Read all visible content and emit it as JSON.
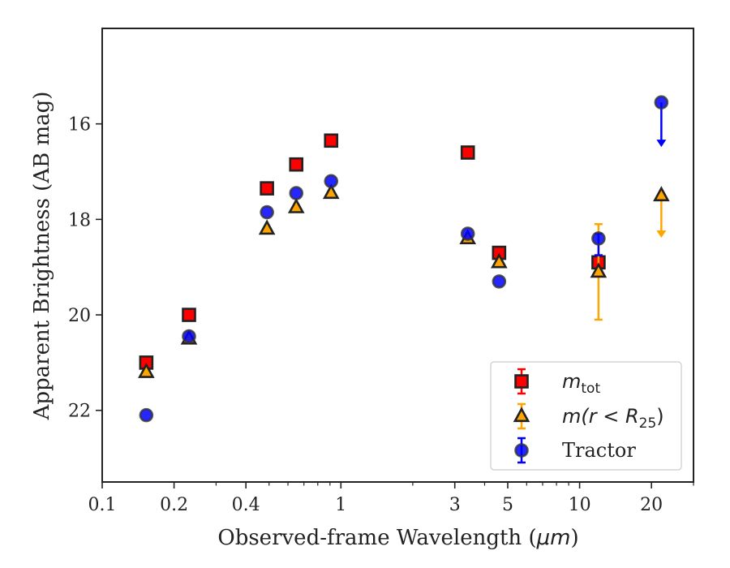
{
  "chart_data": {
    "type": "scatter",
    "xlabel_prefix": "Observed-frame Wavelength (",
    "xlabel_unit": "μm",
    "xlabel_suffix": ")",
    "ylabel": "Apparent Brightness (AB mag)",
    "xscale": "log",
    "xlim": [
      0.1,
      30
    ],
    "ylim": [
      23.5,
      14
    ],
    "y_inverted": true,
    "grid": false,
    "legend_position": "lower-right",
    "x_tick_labels": [
      "0.1",
      "0.2",
      "0.4",
      "1",
      "3",
      "5",
      "10",
      "20"
    ],
    "x_ticks": [
      0.1,
      0.2,
      0.4,
      1,
      3,
      5,
      10,
      20
    ],
    "y_ticks": [
      16,
      18,
      20,
      22
    ],
    "y_tick_labels": [
      "16",
      "18",
      "20",
      "22"
    ],
    "series": [
      {
        "name": "m_tot",
        "legend_main": "m",
        "legend_sub": "tot",
        "marker": "square",
        "color": "#ff0000",
        "edge": "#222222",
        "points": [
          {
            "x": 0.153,
            "y": 21.0
          },
          {
            "x": 0.231,
            "y": 20.0
          },
          {
            "x": 0.49,
            "y": 17.35
          },
          {
            "x": 0.65,
            "y": 16.85
          },
          {
            "x": 0.91,
            "y": 16.35
          },
          {
            "x": 3.4,
            "y": 16.6
          },
          {
            "x": 4.6,
            "y": 18.7
          },
          {
            "x": 12.0,
            "y": 18.9
          }
        ]
      },
      {
        "name": "m(r < R25)",
        "legend_main": "m(r < R",
        "legend_sub": "25",
        "legend_tail": ")",
        "marker": "triangle",
        "color": "#ffa500",
        "edge": "#222222",
        "points": [
          {
            "x": 0.153,
            "y": 21.2
          },
          {
            "x": 0.231,
            "y": 20.5
          },
          {
            "x": 0.49,
            "y": 18.2
          },
          {
            "x": 0.65,
            "y": 17.75
          },
          {
            "x": 0.91,
            "y": 17.45
          },
          {
            "x": 3.4,
            "y": 18.4
          },
          {
            "x": 4.6,
            "y": 18.9
          },
          {
            "x": 12.0,
            "y": 19.1,
            "yerr_low": 20.1,
            "yerr_high": 18.1
          },
          {
            "x": 22.0,
            "y": 17.5,
            "limit": 18.35
          }
        ]
      },
      {
        "name": "Tractor",
        "legend_main": "Tractor",
        "marker": "circle",
        "color": "#0000ff",
        "edge": "#333333",
        "points": [
          {
            "x": 0.153,
            "y": 22.1
          },
          {
            "x": 0.231,
            "y": 20.45
          },
          {
            "x": 0.49,
            "y": 17.85
          },
          {
            "x": 0.65,
            "y": 17.45
          },
          {
            "x": 0.91,
            "y": 17.2
          },
          {
            "x": 3.4,
            "y": 18.3
          },
          {
            "x": 4.6,
            "y": 19.3
          },
          {
            "x": 12.0,
            "y": 18.4,
            "yerr_low": 18.75,
            "yerr_high": 18.3
          },
          {
            "x": 22.0,
            "y": 15.55,
            "limit": 16.45
          }
        ]
      }
    ]
  }
}
